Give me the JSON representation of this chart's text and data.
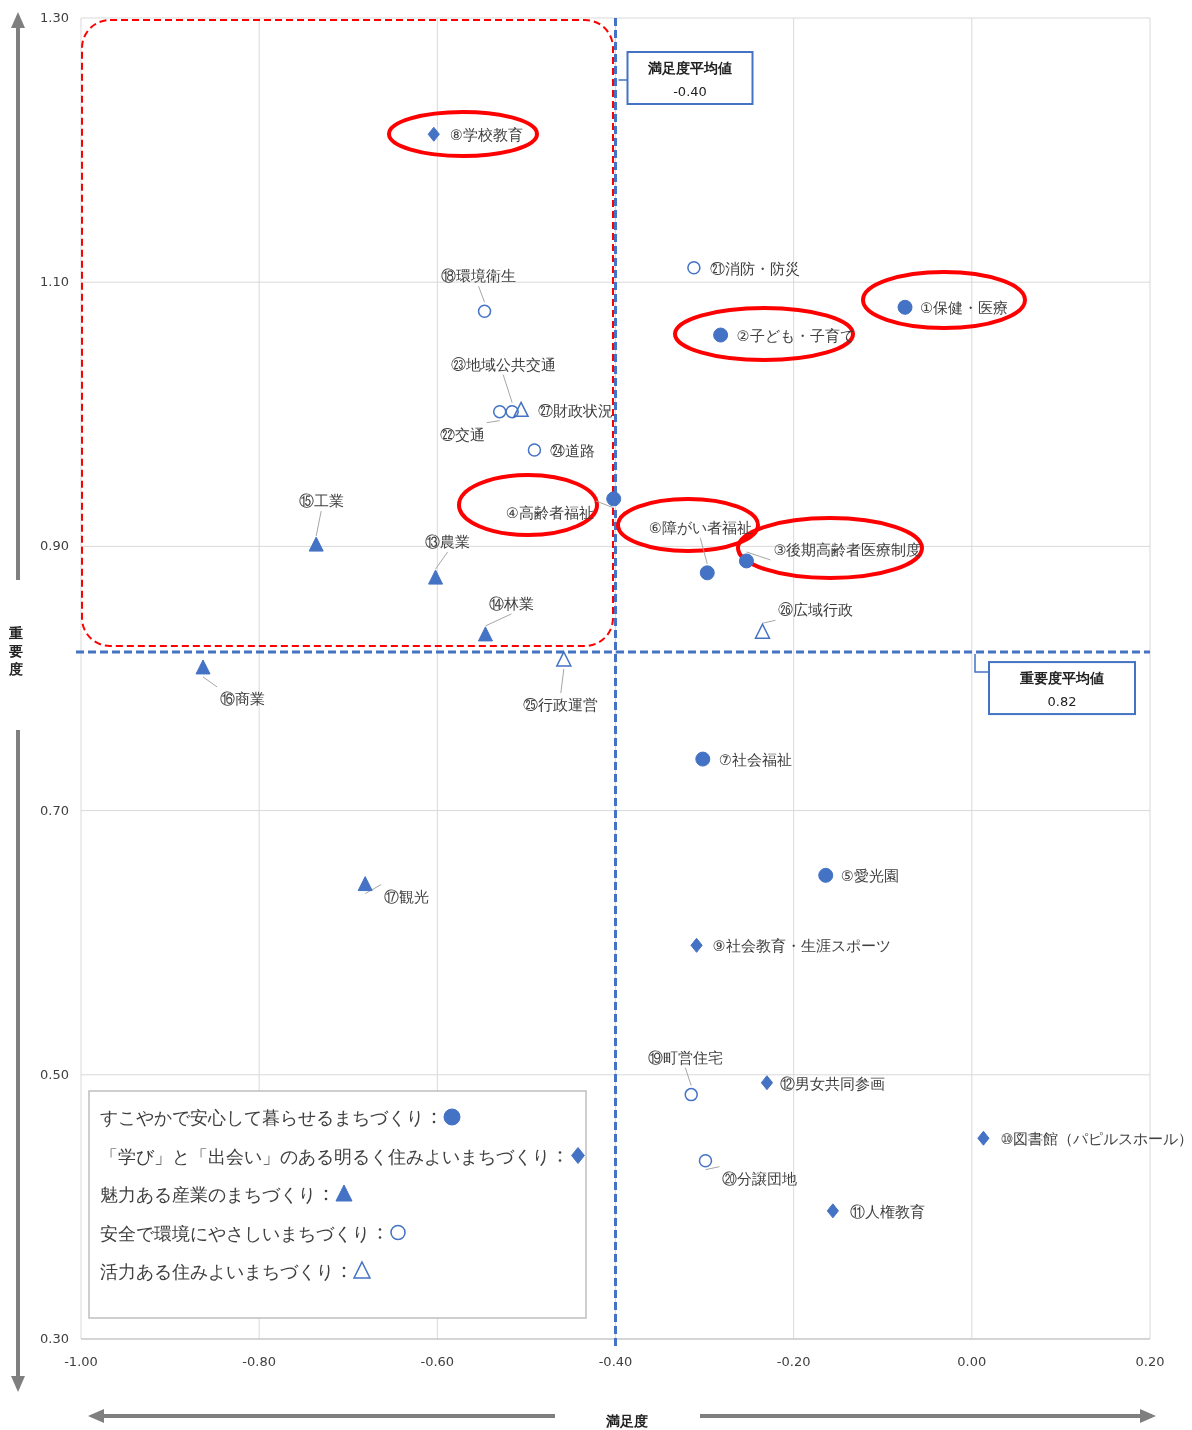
{
  "chart_data": {
    "type": "scatter",
    "xlabel": "満足度",
    "ylabel": "重要度",
    "xlim": [
      -1,
      0.2
    ],
    "ylim": [
      0.3,
      1.3
    ],
    "xticks": [
      {
        "value": -1,
        "label": "-1.00"
      },
      {
        "value": -0.8,
        "label": "-0.80"
      },
      {
        "value": -0.6,
        "label": "-0.60"
      },
      {
        "value": -0.4,
        "label": "-0.40"
      },
      {
        "value": -0.2,
        "label": "-0.20"
      },
      {
        "value": 0,
        "label": "0.00"
      },
      {
        "value": 0.2,
        "label": "0.20"
      }
    ],
    "yticks": [
      {
        "value": 0.3,
        "label": "0.30"
      },
      {
        "value": 0.5,
        "label": "0.50"
      },
      {
        "value": 0.7,
        "label": "0.70"
      },
      {
        "value": 0.9,
        "label": "0.90"
      },
      {
        "value": 1.1,
        "label": "1.10"
      },
      {
        "value": 1.3,
        "label": "1.30"
      }
    ],
    "grid": true,
    "legend": "bottom left",
    "series": [
      {
        "name": "すこやかで安心して暮らせるまちづくり",
        "color": "#4472c4",
        "marker": "circle",
        "x": [
          -0.075,
          -0.282,
          -0.253,
          -0.402,
          -0.164,
          -0.297,
          -0.302
        ],
        "values": [
          1.081,
          1.06,
          0.889,
          0.936,
          0.651,
          0.88,
          0.739
        ]
      },
      {
        "name": "「学び」と「出会い」のある明るく住みよいまちづくり",
        "color": "#4472c4",
        "marker": "diamond",
        "x": [
          -0.604,
          -0.309,
          0.013,
          -0.156,
          -0.23
        ],
        "values": [
          1.212,
          0.598,
          0.452,
          0.397,
          0.494
        ]
      },
      {
        "name": "魅力ある産業のまちづくり",
        "color": "#4472c4",
        "marker": "triangle",
        "x": [
          -0.602,
          -0.546,
          -0.736,
          -0.863,
          -0.681
        ],
        "values": [
          0.876,
          0.833,
          0.901,
          0.808,
          0.644
        ]
      },
      {
        "name": "安全で環境にやさしいまちづくり",
        "color": "#4472c4",
        "marker": "circle-open",
        "x": [
          -0.547,
          -0.315,
          -0.299,
          -0.312,
          -0.53,
          -0.516,
          -0.491
        ],
        "values": [
          1.078,
          0.485,
          0.435,
          1.111,
          1.002,
          1.002,
          0.973
        ]
      },
      {
        "name": "活力ある住みよいまちづくり",
        "color": "#4472c4",
        "marker": "triangle-open",
        "x": [
          -0.458,
          -0.235,
          -0.506
        ],
        "values": [
          0.814,
          0.835,
          1.003
        ]
      }
    ],
    "ref_lines": [
      {
        "axis": "x",
        "value": -0.4,
        "label": "満足度平均値 -0.40",
        "color": "#4472c4",
        "line_style": "dashed"
      },
      {
        "axis": "y",
        "value": 0.82,
        "label": "重要度平均値 0.82",
        "color": "#4472c4",
        "line_style": "dashed"
      }
    ],
    "annotations": [
      {
        "text": "①保健・医療",
        "x": -0.075,
        "y": 1.081
      },
      {
        "text": "②子ども・子育て",
        "x": -0.282,
        "y": 1.06
      },
      {
        "text": "③後期高齢者医療制度",
        "x": -0.253,
        "y": 0.889
      },
      {
        "text": "④高齢者福祉",
        "x": -0.402,
        "y": 0.936
      },
      {
        "text": "⑤愛光園",
        "x": -0.164,
        "y": 0.651
      },
      {
        "text": "⑥障がい者福祉",
        "x": -0.297,
        "y": 0.88
      },
      {
        "text": "⑦社会福祉",
        "x": -0.302,
        "y": 0.739
      },
      {
        "text": "⑧学校教育",
        "x": -0.604,
        "y": 1.212
      },
      {
        "text": "⑨社会教育・生涯スポーツ",
        "x": -0.309,
        "y": 0.598
      },
      {
        "text": "⑩図書館（パピルスホール）",
        "x": 0.013,
        "y": 0.452
      },
      {
        "text": "⑪人権教育",
        "x": -0.156,
        "y": 0.397
      },
      {
        "text": "⑫男女共同参画",
        "x": -0.23,
        "y": 0.494
      },
      {
        "text": "⑬農業",
        "x": -0.602,
        "y": 0.876
      },
      {
        "text": "⑭林業",
        "x": -0.546,
        "y": 0.833
      },
      {
        "text": "⑮工業",
        "x": -0.736,
        "y": 0.901
      },
      {
        "text": "⑯商業",
        "x": -0.863,
        "y": 0.808
      },
      {
        "text": "⑰観光",
        "x": -0.681,
        "y": 0.644
      },
      {
        "text": "⑱環境衛生",
        "x": -0.547,
        "y": 1.078
      },
      {
        "text": "⑲町営住宅",
        "x": -0.315,
        "y": 0.485
      },
      {
        "text": "⑳分譲団地",
        "x": -0.299,
        "y": 0.435
      },
      {
        "text": "㉑消防・防災",
        "x": -0.312,
        "y": 1.111
      },
      {
        "text": "㉒交通",
        "x": -0.53,
        "y": 1.002
      },
      {
        "text": "㉓地域公共交通",
        "x": -0.516,
        "y": 1.002
      },
      {
        "text": "㉔道路",
        "x": -0.491,
        "y": 0.973
      },
      {
        "text": "㉕行政運営",
        "x": -0.458,
        "y": 0.814
      },
      {
        "text": "㉖広域行政",
        "x": -0.235,
        "y": 0.835
      },
      {
        "text": "㉗財政状況",
        "x": -0.506,
        "y": 1.003
      }
    ]
  }
}
